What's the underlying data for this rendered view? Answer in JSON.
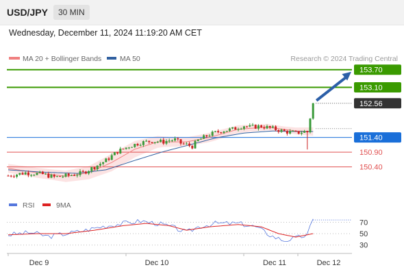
{
  "header": {
    "symbol": "USD/JPY",
    "timeframe": "30 MIN"
  },
  "datetime": "Wednesday, December 11, 2024 11:19:20 AM CET",
  "legend": {
    "ma20": "MA 20 + Bollinger Bands",
    "ma50": "MA 50",
    "ma20_color": "#f08080",
    "ma50_color": "#3060a0"
  },
  "credit": "Research © 2024 Trading Central",
  "levels": [
    {
      "value": 153.7,
      "label": "153.70",
      "kind": "resistance",
      "color": "#3a9a00"
    },
    {
      "value": 153.1,
      "label": "153.10",
      "kind": "resistance",
      "color": "#3a9a00"
    },
    {
      "value": 152.56,
      "label": "152.56",
      "kind": "last",
      "color": "#333333"
    },
    {
      "value": 151.4,
      "label": "151.40",
      "kind": "pivot",
      "color": "#1a6fd9"
    },
    {
      "value": 150.9,
      "label": "150.90",
      "kind": "support",
      "color": "#e05050"
    },
    {
      "value": 150.4,
      "label": "150.40",
      "kind": "support",
      "color": "#e05050"
    }
  ],
  "rsi_legend": {
    "rsi": "RSI",
    "ma9": "9MA",
    "rsi_color": "#5577dd",
    "ma9_color": "#dd2222"
  },
  "chart_data": {
    "type": "candlestick",
    "price_range": [
      149.6,
      153.95
    ],
    "x_ticks": [
      "Dec 9",
      "Dec 10",
      "Dec 11",
      "Dec 12"
    ],
    "bars": 110,
    "close_path": [
      [
        0,
        150.1
      ],
      [
        6,
        150.2
      ],
      [
        12,
        150.15
      ],
      [
        16,
        150.05
      ],
      [
        22,
        150.12
      ],
      [
        26,
        150.2
      ],
      [
        30,
        150.4
      ],
      [
        34,
        150.62
      ],
      [
        38,
        150.92
      ],
      [
        42,
        151.1
      ],
      [
        46,
        151.22
      ],
      [
        50,
        151.28
      ],
      [
        54,
        151.25
      ],
      [
        56,
        151.3
      ],
      [
        58,
        151.32
      ],
      [
        60,
        151.2
      ],
      [
        64,
        151.1
      ],
      [
        66,
        151.3
      ],
      [
        70,
        151.5
      ],
      [
        74,
        151.62
      ],
      [
        78,
        151.68
      ],
      [
        82,
        151.8
      ],
      [
        84,
        151.75
      ],
      [
        88,
        151.78
      ],
      [
        92,
        151.7
      ],
      [
        96,
        151.6
      ],
      [
        100,
        151.55
      ],
      [
        103,
        151.6
      ],
      [
        104,
        151.58
      ],
      [
        106,
        152.56
      ]
    ],
    "ma20_path": [
      [
        0,
        150.35
      ],
      [
        10,
        150.2
      ],
      [
        20,
        150.08
      ],
      [
        28,
        150.2
      ],
      [
        36,
        150.55
      ],
      [
        44,
        151.0
      ],
      [
        52,
        151.25
      ],
      [
        62,
        151.25
      ],
      [
        70,
        151.4
      ],
      [
        80,
        151.68
      ],
      [
        90,
        151.75
      ],
      [
        100,
        151.62
      ],
      [
        106,
        151.6
      ]
    ],
    "ma50_path": [
      [
        0,
        150.3
      ],
      [
        12,
        150.22
      ],
      [
        24,
        150.18
      ],
      [
        34,
        150.3
      ],
      [
        44,
        150.62
      ],
      [
        54,
        150.92
      ],
      [
        62,
        151.12
      ],
      [
        72,
        151.38
      ],
      [
        82,
        151.55
      ],
      [
        92,
        151.62
      ],
      [
        100,
        151.6
      ],
      [
        106,
        151.6
      ]
    ],
    "band_width": [
      [
        0,
        0.15
      ],
      [
        16,
        0.18
      ],
      [
        28,
        0.22
      ],
      [
        36,
        0.3
      ],
      [
        44,
        0.28
      ],
      [
        54,
        0.18
      ],
      [
        62,
        0.15
      ],
      [
        72,
        0.16
      ],
      [
        84,
        0.12
      ],
      [
        96,
        0.1
      ],
      [
        106,
        0.14
      ]
    ],
    "rsi": {
      "y_ticks": [
        70,
        50,
        30
      ],
      "range": [
        20,
        85
      ],
      "rsi_path": [
        [
          0,
          48
        ],
        [
          8,
          52
        ],
        [
          14,
          45
        ],
        [
          20,
          50
        ],
        [
          26,
          55
        ],
        [
          32,
          62
        ],
        [
          40,
          68
        ],
        [
          46,
          72
        ],
        [
          52,
          68
        ],
        [
          58,
          60
        ],
        [
          62,
          52
        ],
        [
          66,
          62
        ],
        [
          72,
          68
        ],
        [
          80,
          68
        ],
        [
          86,
          62
        ],
        [
          92,
          45
        ],
        [
          96,
          38
        ],
        [
          100,
          42
        ],
        [
          104,
          48
        ],
        [
          106,
          74
        ],
        [
          110,
          74
        ]
      ],
      "ma9_path": [
        [
          0,
          48
        ],
        [
          10,
          50
        ],
        [
          20,
          50
        ],
        [
          30,
          56
        ],
        [
          40,
          64
        ],
        [
          48,
          68
        ],
        [
          56,
          64
        ],
        [
          62,
          56
        ],
        [
          70,
          62
        ],
        [
          80,
          66
        ],
        [
          88,
          62
        ],
        [
          94,
          50
        ],
        [
          100,
          44
        ],
        [
          106,
          50
        ]
      ]
    }
  }
}
